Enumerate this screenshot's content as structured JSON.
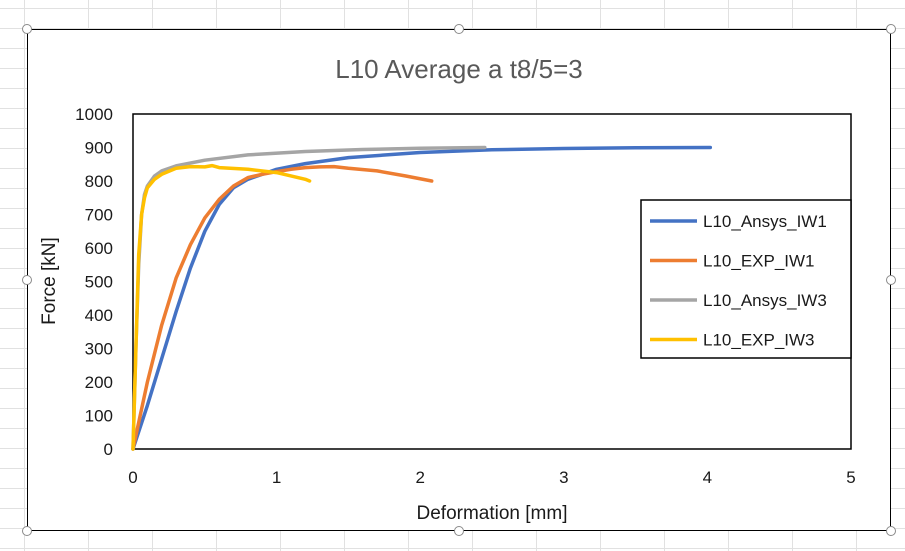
{
  "chart_data": {
    "type": "line",
    "title": "L10 Average a t8/5=3",
    "xlabel": "Deformation [mm]",
    "ylabel": "Force [kN]",
    "xlim": [
      0,
      5
    ],
    "ylim": [
      0,
      1000
    ],
    "xticks": [
      "0",
      "1",
      "2",
      "3",
      "4",
      "5"
    ],
    "yticks": [
      "0",
      "100",
      "200",
      "300",
      "400",
      "500",
      "600",
      "700",
      "800",
      "900",
      "1000"
    ],
    "grid": false,
    "legend_position": "right",
    "series": [
      {
        "name": "L10_Ansys_IW1",
        "color": "#4472C4",
        "x": [
          0,
          0.1,
          0.2,
          0.3,
          0.4,
          0.5,
          0.6,
          0.7,
          0.8,
          1.0,
          1.2,
          1.5,
          2.0,
          2.5,
          3.0,
          3.5,
          4.02
        ],
        "y": [
          0,
          130,
          270,
          410,
          540,
          650,
          730,
          780,
          805,
          835,
          852,
          870,
          885,
          893,
          897,
          899,
          900
        ]
      },
      {
        "name": "L10_EXP_IW1",
        "color": "#ED7D31",
        "x": [
          0,
          0.05,
          0.1,
          0.2,
          0.3,
          0.4,
          0.5,
          0.6,
          0.7,
          0.8,
          0.9,
          1.0,
          1.1,
          1.2,
          1.3,
          1.4,
          1.5,
          1.7,
          1.9,
          2.08
        ],
        "y": [
          0,
          100,
          200,
          370,
          510,
          610,
          690,
          745,
          785,
          810,
          820,
          828,
          835,
          840,
          842,
          843,
          838,
          830,
          815,
          800
        ]
      },
      {
        "name": "L10_Ansys_IW3",
        "color": "#A5A5A5",
        "x": [
          0,
          0.02,
          0.04,
          0.06,
          0.08,
          0.1,
          0.15,
          0.2,
          0.3,
          0.5,
          0.8,
          1.2,
          1.6,
          2.0,
          2.45
        ],
        "y": [
          0,
          300,
          550,
          700,
          760,
          785,
          815,
          830,
          845,
          862,
          878,
          888,
          894,
          898,
          900
        ]
      },
      {
        "name": "L10_EXP_IW3",
        "color": "#FFC000",
        "x": [
          0,
          0.02,
          0.04,
          0.06,
          0.08,
          0.1,
          0.15,
          0.2,
          0.3,
          0.4,
          0.5,
          0.55,
          0.6,
          0.8,
          1.0,
          1.2,
          1.23
        ],
        "y": [
          0,
          300,
          580,
          700,
          750,
          780,
          805,
          820,
          838,
          843,
          842,
          846,
          840,
          835,
          825,
          805,
          800
        ]
      }
    ]
  }
}
